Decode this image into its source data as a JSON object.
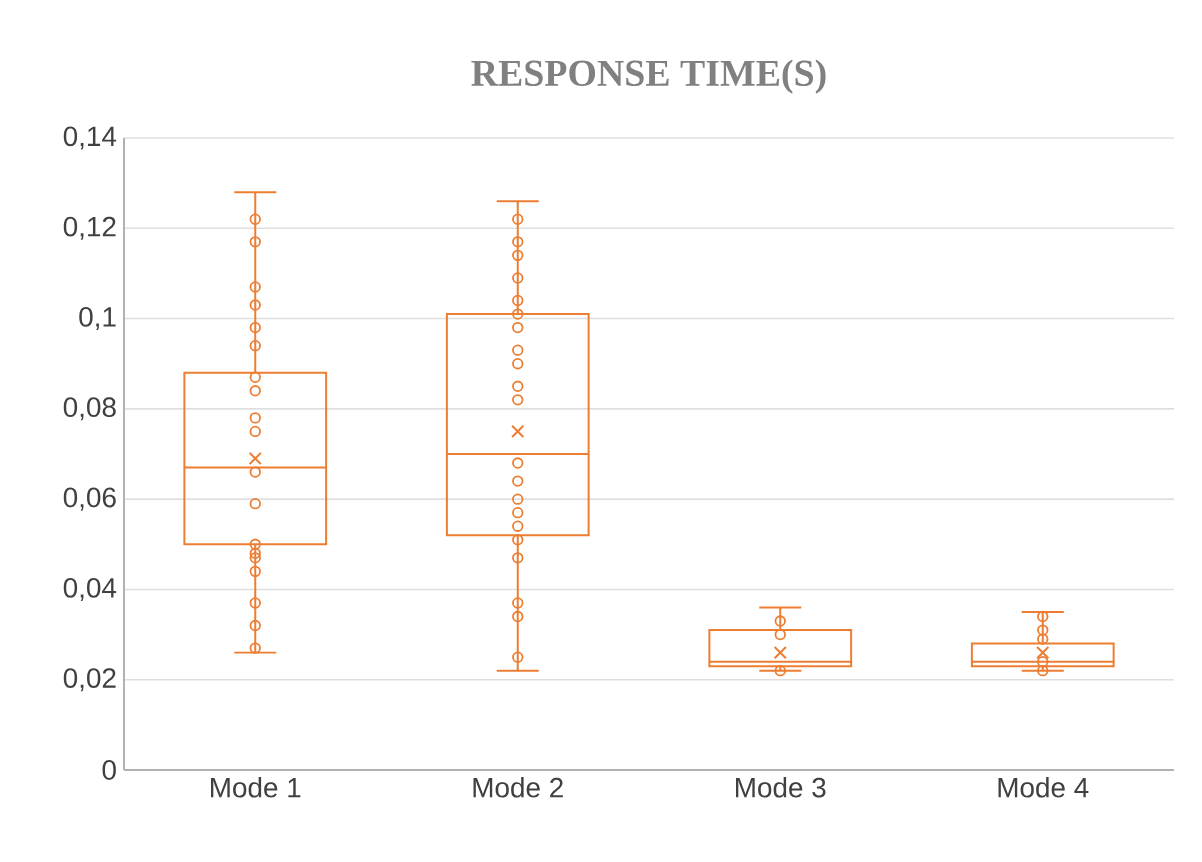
{
  "chart_data": {
    "type": "box",
    "title": "RESPONSE TIME(S)",
    "categories": [
      "Mode 1",
      "Mode 2",
      "Mode 3",
      "Mode 4"
    ],
    "color": "#ed7d31",
    "boxes": [
      {
        "low": 0.026,
        "q1": 0.05,
        "median": 0.067,
        "q3": 0.088,
        "high": 0.128,
        "mean": 0.069
      },
      {
        "low": 0.022,
        "q1": 0.052,
        "median": 0.07,
        "q3": 0.101,
        "high": 0.126,
        "mean": 0.075
      },
      {
        "low": 0.022,
        "q1": 0.023,
        "median": 0.024,
        "q3": 0.031,
        "high": 0.036,
        "mean": 0.026
      },
      {
        "low": 0.022,
        "q1": 0.023,
        "median": 0.024,
        "q3": 0.028,
        "high": 0.035,
        "mean": 0.026
      }
    ],
    "series": [
      {
        "type": "scatter",
        "color": "#ed7d31",
        "x": [
          "Mode 1",
          "Mode 1",
          "Mode 1",
          "Mode 1",
          "Mode 1",
          "Mode 1",
          "Mode 1",
          "Mode 1",
          "Mode 1",
          "Mode 1",
          "Mode 1",
          "Mode 1",
          "Mode 1",
          "Mode 1",
          "Mode 1",
          "Mode 1",
          "Mode 1",
          "Mode 1",
          "Mode 1",
          "Mode 1"
        ],
        "values": [
          0.122,
          0.117,
          0.107,
          0.103,
          0.098,
          0.094,
          0.087,
          0.084,
          0.078,
          0.075,
          null,
          0.066,
          0.059,
          0.05,
          0.048,
          0.047,
          0.044,
          0.037,
          0.032,
          0.027
        ]
      },
      {
        "type": "scatter",
        "color": "#ed7d31",
        "x": [
          "Mode 2",
          "Mode 2",
          "Mode 2",
          "Mode 2",
          "Mode 2",
          "Mode 2",
          "Mode 2",
          "Mode 2",
          "Mode 2",
          "Mode 2",
          "Mode 2",
          "Mode 2",
          "Mode 2",
          "Mode 2",
          "Mode 2",
          "Mode 2",
          "Mode 2",
          "Mode 2",
          "Mode 2",
          "Mode 2",
          "Mode 2"
        ],
        "values": [
          0.122,
          0.117,
          0.114,
          0.109,
          0.104,
          0.101,
          0.098,
          0.093,
          0.09,
          0.085,
          0.082,
          0.068,
          0.064,
          0.06,
          0.057,
          0.054,
          0.051,
          0.047,
          0.037,
          0.034,
          0.025
        ]
      },
      {
        "type": "scatter",
        "color": "#ed7d31",
        "x": [
          "Mode 3",
          "Mode 3",
          "Mode 3"
        ],
        "values": [
          0.033,
          0.03,
          0.022
        ]
      },
      {
        "type": "scatter",
        "color": "#ed7d31",
        "x": [
          "Mode 4",
          "Mode 4",
          "Mode 4",
          "Mode 4",
          "Mode 4",
          "Mode 4"
        ],
        "values": [
          0.034,
          0.031,
          0.029,
          null,
          0.024,
          0.022
        ]
      }
    ],
    "marker": "circle",
    "ylim": [
      0,
      0.14
    ],
    "yticks": [
      0,
      {
        "value": 0.02,
        "label": "0,02"
      },
      {
        "value": 0.04,
        "label": "0,04"
      },
      {
        "value": 0.06,
        "label": "0,06"
      },
      {
        "value": 0.08,
        "label": "0,08"
      },
      {
        "value": 0.1,
        "label": "0,1"
      },
      {
        "value": 0.12,
        "label": "0,12"
      },
      {
        "value": 0.14,
        "label": "0,14"
      }
    ],
    "grid": "y"
  }
}
